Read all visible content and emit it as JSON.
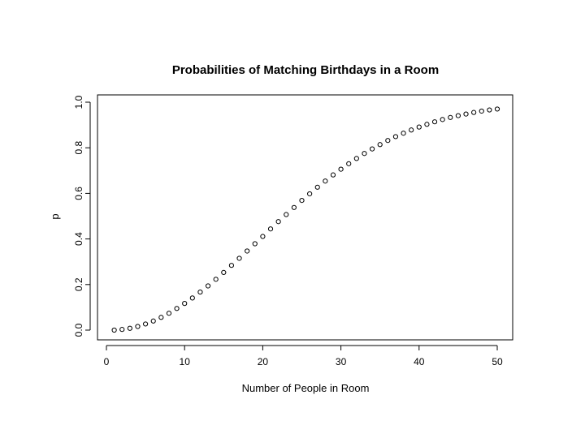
{
  "chart_data": {
    "type": "scatter",
    "title": "Probabilities of Matching Birthdays in a Room",
    "xlabel": "Number of People in Room",
    "ylabel": "p",
    "xlim": [
      0,
      51
    ],
    "ylim": [
      0,
      1.0
    ],
    "xticks": [
      0,
      10,
      20,
      30,
      40,
      50
    ],
    "xtick_labels": [
      "0",
      "10",
      "20",
      "30",
      "40",
      "50"
    ],
    "yticks": [
      0.0,
      0.2,
      0.4,
      0.6,
      0.8,
      1.0
    ],
    "ytick_labels": [
      "0.0",
      "0.2",
      "0.4",
      "0.6",
      "0.8",
      "1.0"
    ],
    "grid": false,
    "marker": "open-circle",
    "x": [
      1,
      2,
      3,
      4,
      5,
      6,
      7,
      8,
      9,
      10,
      11,
      12,
      13,
      14,
      15,
      16,
      17,
      18,
      19,
      20,
      21,
      22,
      23,
      24,
      25,
      26,
      27,
      28,
      29,
      30,
      31,
      32,
      33,
      34,
      35,
      36,
      37,
      38,
      39,
      40,
      41,
      42,
      43,
      44,
      45,
      46,
      47,
      48,
      49,
      50
    ],
    "y": [
      0.0,
      0.003,
      0.008,
      0.016,
      0.027,
      0.04,
      0.056,
      0.074,
      0.095,
      0.117,
      0.141,
      0.167,
      0.194,
      0.223,
      0.253,
      0.284,
      0.315,
      0.347,
      0.379,
      0.411,
      0.444,
      0.476,
      0.507,
      0.538,
      0.569,
      0.598,
      0.627,
      0.654,
      0.681,
      0.706,
      0.73,
      0.753,
      0.775,
      0.795,
      0.814,
      0.832,
      0.849,
      0.864,
      0.878,
      0.891,
      0.903,
      0.914,
      0.924,
      0.933,
      0.941,
      0.948,
      0.955,
      0.961,
      0.966,
      0.97
    ]
  }
}
